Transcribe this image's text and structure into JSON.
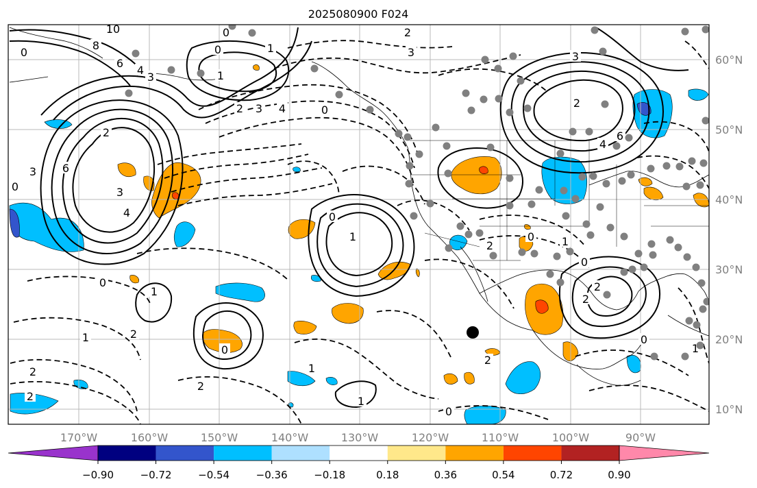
{
  "title": "2025080900 F024",
  "map": {
    "lon_ticks": [
      "170°W",
      "160°W",
      "150°W",
      "140°W",
      "130°W",
      "120°W",
      "110°W",
      "100°W",
      "90°W"
    ],
    "lat_ticks": [
      "60°N",
      "50°N",
      "40°N",
      "30°N",
      "20°N",
      "10°N"
    ],
    "grid": true,
    "tick_label_color": "#808080",
    "marker_color": "#000000",
    "station_color": "#808080",
    "contour_labels": [
      "10",
      "8",
      "6",
      "4",
      "3",
      "0",
      "1",
      "2",
      "3",
      "4",
      "0",
      "0",
      "2",
      "3",
      "4",
      "6",
      "3",
      "0",
      "1",
      "2",
      "2",
      "2",
      "0",
      "1",
      "2",
      "0",
      "1",
      "1",
      "0",
      "2",
      "0",
      "1",
      "2",
      "0",
      "1",
      "0",
      "2",
      "2",
      "1",
      "0",
      "3",
      "2",
      "6",
      "4",
      "3",
      "2",
      "0",
      "1"
    ]
  },
  "colorbar": {
    "tick_labels": [
      "−0.90",
      "−0.72",
      "−0.54",
      "−0.36",
      "−0.18",
      "0.18",
      "0.36",
      "0.54",
      "0.72",
      "0.90"
    ],
    "colors": [
      "#9933cc",
      "#000080",
      "#3355cc",
      "#00bfff",
      "#aee0ff",
      "#ffffff",
      "#ffe88a",
      "#ffa500",
      "#ff4500",
      "#b22222",
      "#ff88aa"
    ],
    "extend": "both"
  }
}
